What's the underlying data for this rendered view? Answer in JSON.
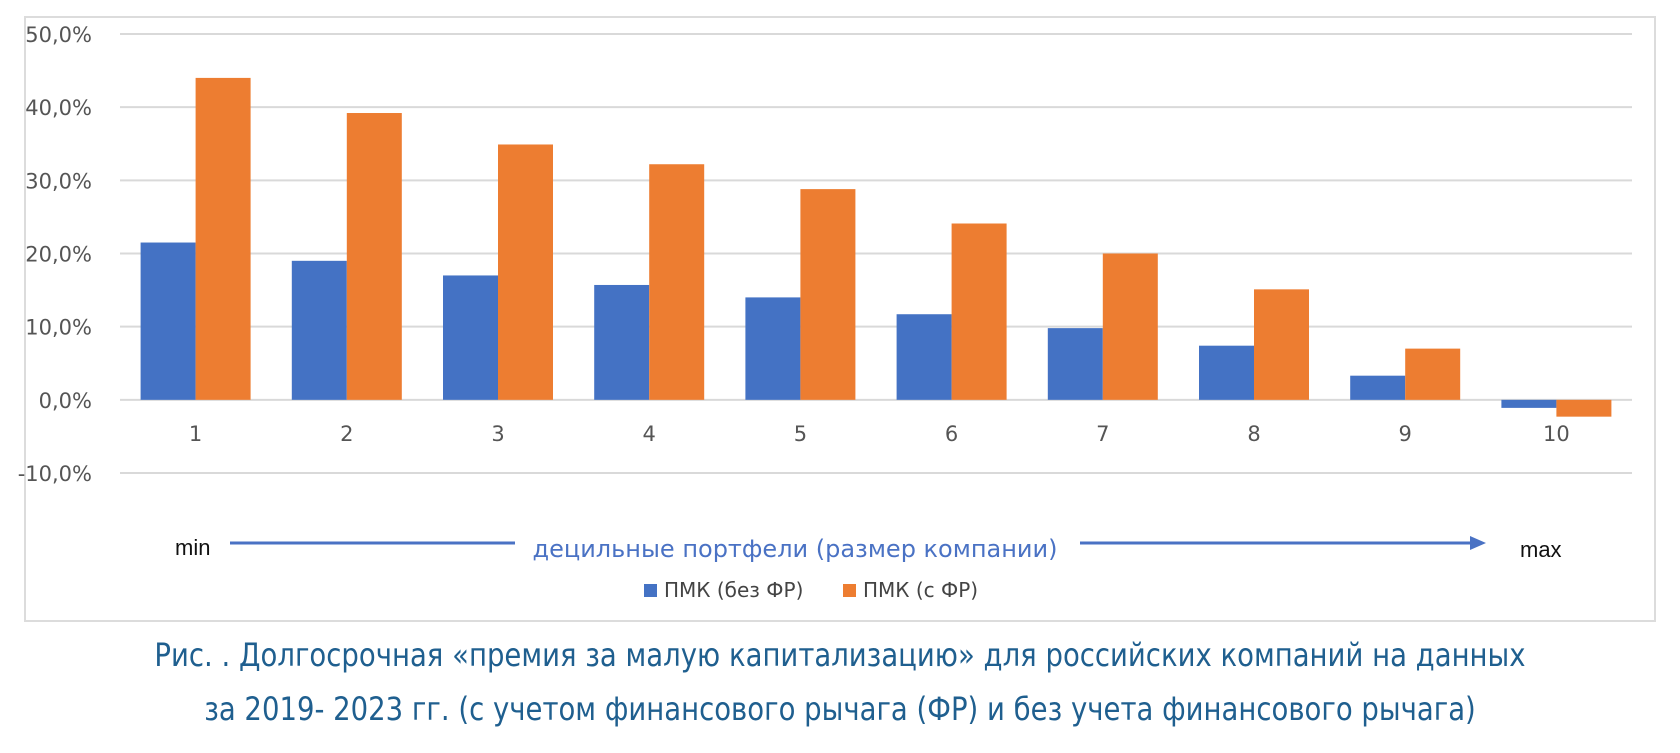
{
  "chart_data": {
    "type": "bar",
    "categories": [
      "1",
      "2",
      "3",
      "4",
      "5",
      "6",
      "7",
      "8",
      "9",
      "10"
    ],
    "series": [
      {
        "name": "ПМК (без ФР)",
        "values": [
          21.5,
          19.0,
          17.0,
          15.7,
          14.0,
          11.7,
          9.8,
          7.4,
          3.3,
          -1.1
        ],
        "color": "#4472c4"
      },
      {
        "name": "ПМК (с ФР)",
        "values": [
          44.0,
          39.2,
          34.9,
          32.2,
          28.8,
          24.1,
          20.0,
          15.1,
          7.0,
          -2.3
        ],
        "color": "#ed7d31"
      }
    ],
    "ylim": [
      -10,
      50
    ],
    "yticks": [
      -10,
      0,
      10,
      20,
      30,
      40,
      50
    ],
    "ytick_labels": [
      "-10,0%",
      "0,0%",
      "10,0%",
      "20,0%",
      "30,0%",
      "40,0%",
      "50,0%"
    ],
    "grid": true,
    "legend_position": "bottom",
    "axis_min_label": "min",
    "axis_max_label": "max",
    "xlabel": "децильные портфели (размер компании)"
  },
  "caption": {
    "line1": "Рис.   .  Долгосрочная «премия за малую капитализацию» для российских компаний на данных",
    "line2": "за 2019- 2023 гг. (с учетом финансового рычага (ФР) и без учета финансового рычага)"
  },
  "colors": {
    "caption": "#1f5f8f",
    "axis_label": "#4a72c4",
    "arrow": "#4a72c4",
    "grid": "#d9d9d9"
  }
}
